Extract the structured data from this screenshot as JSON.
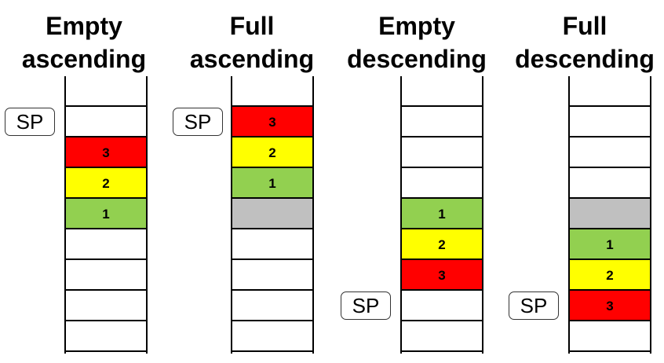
{
  "colors": {
    "red": "#ff0000",
    "yellow": "#ffff00",
    "green": "#92d050",
    "gray": "#c0c0c0",
    "white": "#ffffff"
  },
  "panels": [
    {
      "title_line1": "Empty",
      "title_line2": "ascending",
      "sp_label": "SP",
      "cells": [
        {
          "color": "white",
          "label": ""
        },
        {
          "color": "red",
          "label": "3"
        },
        {
          "color": "yellow",
          "label": "2"
        },
        {
          "color": "green",
          "label": "1"
        },
        {
          "color": "white",
          "label": ""
        },
        {
          "color": "white",
          "label": ""
        },
        {
          "color": "white",
          "label": ""
        },
        {
          "color": "white",
          "label": ""
        }
      ]
    },
    {
      "title_line1": "Full",
      "title_line2": "ascending",
      "sp_label": "SP",
      "cells": [
        {
          "color": "red",
          "label": "3"
        },
        {
          "color": "yellow",
          "label": "2"
        },
        {
          "color": "green",
          "label": "1"
        },
        {
          "color": "gray",
          "label": ""
        },
        {
          "color": "white",
          "label": ""
        },
        {
          "color": "white",
          "label": ""
        },
        {
          "color": "white",
          "label": ""
        },
        {
          "color": "white",
          "label": ""
        }
      ]
    },
    {
      "title_line1": "Empty",
      "title_line2": "descending",
      "sp_label": "SP",
      "cells": [
        {
          "color": "white",
          "label": ""
        },
        {
          "color": "white",
          "label": ""
        },
        {
          "color": "white",
          "label": ""
        },
        {
          "color": "green",
          "label": "1"
        },
        {
          "color": "yellow",
          "label": "2"
        },
        {
          "color": "red",
          "label": "3"
        },
        {
          "color": "white",
          "label": ""
        },
        {
          "color": "white",
          "label": ""
        }
      ]
    },
    {
      "title_line1": "Full",
      "title_line2": "descending",
      "sp_label": "SP",
      "cells": [
        {
          "color": "white",
          "label": ""
        },
        {
          "color": "white",
          "label": ""
        },
        {
          "color": "white",
          "label": ""
        },
        {
          "color": "gray",
          "label": ""
        },
        {
          "color": "green",
          "label": "1"
        },
        {
          "color": "yellow",
          "label": "2"
        },
        {
          "color": "red",
          "label": "3"
        },
        {
          "color": "white",
          "label": ""
        }
      ]
    }
  ]
}
